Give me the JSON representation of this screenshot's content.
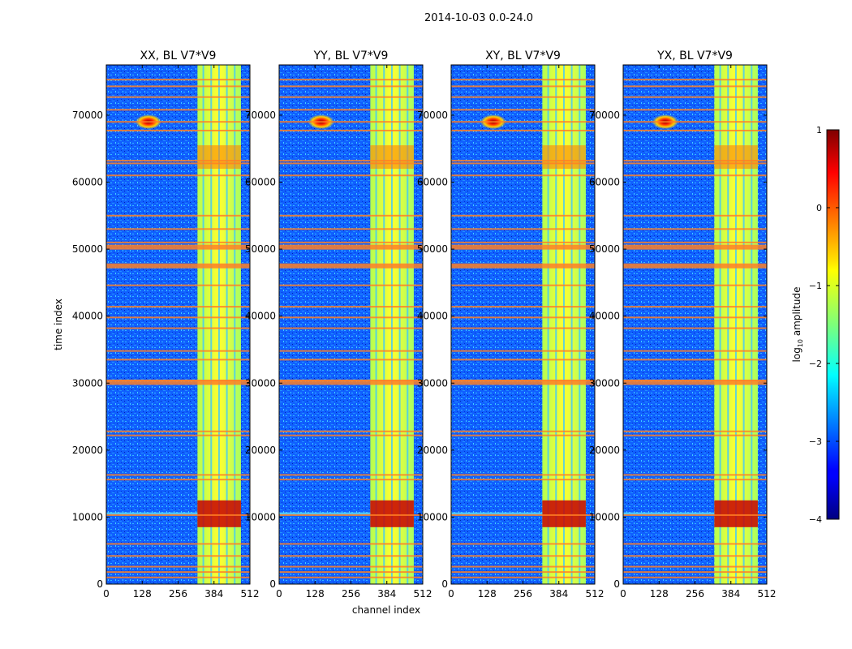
{
  "figure": {
    "suptitle": "2014-10-03 0.0-24.0",
    "xlabel": "channel index",
    "ylabel": "time index",
    "colorbar_label_main": "log",
    "colorbar_label_sub": "10",
    "colorbar_label_rest": " amplitude"
  },
  "chart_data": [
    {
      "type": "heatmap",
      "title": "XX, BL V7*V9",
      "xlabel": "channel index",
      "ylabel": "time index",
      "xlim": [
        0,
        512
      ],
      "ylim": [
        0,
        77500
      ],
      "xticks": [
        "0",
        "128",
        "256",
        "384",
        "512"
      ],
      "yticks": [
        "0",
        "10000",
        "20000",
        "30000",
        "40000",
        "50000",
        "60000",
        "70000"
      ],
      "rfi_band": [
        325,
        480
      ],
      "narrow_rfi_channels": [
        150
      ]
    },
    {
      "type": "heatmap",
      "title": "YY, BL V7*V9",
      "xlim": [
        0,
        512
      ],
      "ylim": [
        0,
        77500
      ],
      "xticks": [
        "0",
        "128",
        "256",
        "384",
        "512"
      ],
      "yticks": [
        "0",
        "10000",
        "20000",
        "30000",
        "40000",
        "50000",
        "60000",
        "70000"
      ],
      "rfi_band": [
        325,
        480
      ],
      "narrow_rfi_channels": [
        150
      ]
    },
    {
      "type": "heatmap",
      "title": "XY, BL V7*V9",
      "xlim": [
        0,
        512
      ],
      "ylim": [
        0,
        77500
      ],
      "xticks": [
        "0",
        "128",
        "256",
        "384",
        "512"
      ],
      "yticks": [
        "0",
        "10000",
        "20000",
        "30000",
        "40000",
        "50000",
        "60000",
        "70000"
      ],
      "rfi_band": [
        325,
        480
      ],
      "narrow_rfi_channels": [
        150
      ]
    },
    {
      "type": "heatmap",
      "title": "YX, BL V7*V9",
      "xlim": [
        0,
        512
      ],
      "ylim": [
        0,
        77500
      ],
      "xticks": [
        "0",
        "128",
        "256",
        "384",
        "512"
      ],
      "yticks": [
        "0",
        "10000",
        "20000",
        "30000",
        "40000",
        "50000",
        "60000",
        "70000"
      ],
      "rfi_band": [
        325,
        480
      ],
      "narrow_rfi_channels": [
        150
      ]
    }
  ],
  "colorbar": {
    "range": [
      -4,
      1
    ],
    "ticks": [
      "1",
      "0",
      "−1",
      "−2",
      "−3",
      "−4"
    ],
    "tick_values": [
      1,
      0,
      -1,
      -2,
      -3,
      -4
    ],
    "colormap": "jet"
  },
  "flagged_rows": [
    1000,
    1800,
    2600,
    4200,
    6000,
    10300,
    15600,
    16300,
    22200,
    22800,
    30100,
    30400,
    33500,
    34800,
    38200,
    39800,
    41400,
    44600,
    47500,
    50300,
    51000,
    53000,
    55000,
    61000,
    62800,
    63200,
    67700,
    69000,
    70800,
    72700,
    74300,
    75300
  ],
  "flag_color": "#ff7f24"
}
